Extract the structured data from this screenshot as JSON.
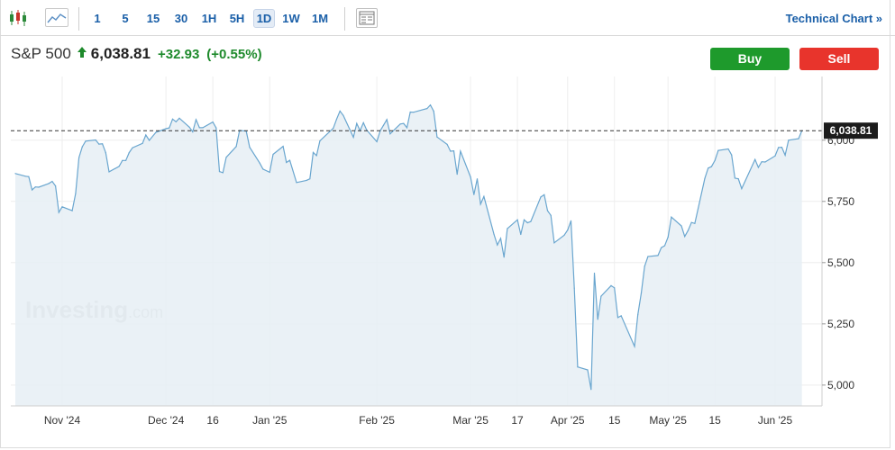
{
  "toolbar": {
    "timeframes": [
      {
        "label": "1",
        "active": false
      },
      {
        "label": "5",
        "active": false
      },
      {
        "label": "15",
        "active": false
      },
      {
        "label": "30",
        "active": false
      },
      {
        "label": "1H",
        "active": false
      },
      {
        "label": "5H",
        "active": false
      },
      {
        "label": "1D",
        "active": true
      },
      {
        "label": "1W",
        "active": false
      },
      {
        "label": "1M",
        "active": false
      }
    ],
    "icons": [
      "candlestick-chart-icon",
      "area-chart-icon",
      "table-view-icon"
    ],
    "technical_chart_label": "Technical Chart »"
  },
  "instrument": {
    "name": "S&P 500",
    "price": "6,038.81",
    "change": "+32.93",
    "change_pct": "(+0.55%)",
    "direction": "up"
  },
  "actions": {
    "buy_label": "Buy",
    "sell_label": "Sell"
  },
  "watermark": {
    "brand": "Investing",
    "suffix": ".com"
  },
  "colors": {
    "line": "#6aa6cf",
    "fill": "#e6eef5",
    "up": "#1e8a2c",
    "buy": "#1e9a2c",
    "sell": "#e8342c",
    "link": "#1a5fa8"
  },
  "chart_data": {
    "type": "area",
    "y_ticks": [
      "5,000",
      "5,250",
      "5,500",
      "5,750",
      "6,000"
    ],
    "y_tick_values": [
      5000,
      5250,
      5500,
      5750,
      6000
    ],
    "ylim": [
      4915,
      6260
    ],
    "x_ticks": [
      {
        "label": "Nov '24",
        "date": "2024-11-01"
      },
      {
        "label": "Dec '24",
        "date": "2024-12-02"
      },
      {
        "label": "16",
        "date": "2024-12-16"
      },
      {
        "label": "Jan '25",
        "date": "2025-01-02"
      },
      {
        "label": "Feb '25",
        "date": "2025-02-03"
      },
      {
        "label": "Mar '25",
        "date": "2025-03-03"
      },
      {
        "label": "17",
        "date": "2025-03-17"
      },
      {
        "label": "Apr '25",
        "date": "2025-04-01"
      },
      {
        "label": "15",
        "date": "2025-04-15"
      },
      {
        "label": "May '25",
        "date": "2025-05-01"
      },
      {
        "label": "15",
        "date": "2025-05-15"
      },
      {
        "label": "Jun '25",
        "date": "2025-06-02"
      }
    ],
    "current_value_label": "6,038.81",
    "current_value": 6038.81,
    "grid": true,
    "series": [
      {
        "points": [
          [
            "2024-10-18",
            5864
          ],
          [
            "2024-10-21",
            5853
          ],
          [
            "2024-10-22",
            5851
          ],
          [
            "2024-10-23",
            5797
          ],
          [
            "2024-10-24",
            5809
          ],
          [
            "2024-10-25",
            5808
          ],
          [
            "2024-10-28",
            5823
          ],
          [
            "2024-10-29",
            5832
          ],
          [
            "2024-10-30",
            5813
          ],
          [
            "2024-10-31",
            5705
          ],
          [
            "2024-11-01",
            5728
          ],
          [
            "2024-11-04",
            5712
          ],
          [
            "2024-11-05",
            5782
          ],
          [
            "2024-11-06",
            5929
          ],
          [
            "2024-11-07",
            5973
          ],
          [
            "2024-11-08",
            5996
          ],
          [
            "2024-11-11",
            6001
          ],
          [
            "2024-11-12",
            5984
          ],
          [
            "2024-11-13",
            5985
          ],
          [
            "2024-11-14",
            5949
          ],
          [
            "2024-11-15",
            5871
          ],
          [
            "2024-11-18",
            5893
          ],
          [
            "2024-11-19",
            5917
          ],
          [
            "2024-11-20",
            5917
          ],
          [
            "2024-11-21",
            5949
          ],
          [
            "2024-11-22",
            5969
          ],
          [
            "2024-11-25",
            5987
          ],
          [
            "2024-11-26",
            6021
          ],
          [
            "2024-11-27",
            5999
          ],
          [
            "2024-11-29",
            6032
          ],
          [
            "2024-12-02",
            6047
          ],
          [
            "2024-12-03",
            6050
          ],
          [
            "2024-12-04",
            6086
          ],
          [
            "2024-12-05",
            6075
          ],
          [
            "2024-12-06",
            6090
          ],
          [
            "2024-12-09",
            6053
          ],
          [
            "2024-12-10",
            6034
          ],
          [
            "2024-12-11",
            6084
          ],
          [
            "2024-12-12",
            6051
          ],
          [
            "2024-12-13",
            6051
          ],
          [
            "2024-12-16",
            6074
          ],
          [
            "2024-12-17",
            6050
          ],
          [
            "2024-12-18",
            5872
          ],
          [
            "2024-12-19",
            5867
          ],
          [
            "2024-12-20",
            5930
          ],
          [
            "2024-12-23",
            5974
          ],
          [
            "2024-12-24",
            6040
          ],
          [
            "2024-12-26",
            6037
          ],
          [
            "2024-12-27",
            5971
          ],
          [
            "2024-12-30",
            5907
          ],
          [
            "2024-12-31",
            5882
          ],
          [
            "2025-01-02",
            5869
          ],
          [
            "2025-01-03",
            5942
          ],
          [
            "2025-01-06",
            5975
          ],
          [
            "2025-01-07",
            5909
          ],
          [
            "2025-01-08",
            5918
          ],
          [
            "2025-01-10",
            5827
          ],
          [
            "2025-01-13",
            5836
          ],
          [
            "2025-01-14",
            5842
          ],
          [
            "2025-01-15",
            5950
          ],
          [
            "2025-01-16",
            5937
          ],
          [
            "2025-01-17",
            5997
          ],
          [
            "2025-01-21",
            6049
          ],
          [
            "2025-01-22",
            6086
          ],
          [
            "2025-01-23",
            6119
          ],
          [
            "2025-01-24",
            6101
          ],
          [
            "2025-01-27",
            6012
          ],
          [
            "2025-01-28",
            6068
          ],
          [
            "2025-01-29",
            6039
          ],
          [
            "2025-01-30",
            6071
          ],
          [
            "2025-01-31",
            6041
          ],
          [
            "2025-02-03",
            5994
          ],
          [
            "2025-02-04",
            6038
          ],
          [
            "2025-02-05",
            6061
          ],
          [
            "2025-02-06",
            6084
          ],
          [
            "2025-02-07",
            6026
          ],
          [
            "2025-02-10",
            6066
          ],
          [
            "2025-02-11",
            6068
          ],
          [
            "2025-02-12",
            6051
          ],
          [
            "2025-02-13",
            6115
          ],
          [
            "2025-02-14",
            6114
          ],
          [
            "2025-02-18",
            6129
          ],
          [
            "2025-02-19",
            6144
          ],
          [
            "2025-02-20",
            6118
          ],
          [
            "2025-02-21",
            6013
          ],
          [
            "2025-02-24",
            5983
          ],
          [
            "2025-02-25",
            5955
          ],
          [
            "2025-02-26",
            5956
          ],
          [
            "2025-02-27",
            5861
          ],
          [
            "2025-02-28",
            5955
          ],
          [
            "2025-03-03",
            5849
          ],
          [
            "2025-03-04",
            5778
          ],
          [
            "2025-03-05",
            5842
          ],
          [
            "2025-03-06",
            5739
          ],
          [
            "2025-03-07",
            5770
          ],
          [
            "2025-03-10",
            5615
          ],
          [
            "2025-03-11",
            5572
          ],
          [
            "2025-03-12",
            5599
          ],
          [
            "2025-03-13",
            5522
          ],
          [
            "2025-03-14",
            5639
          ],
          [
            "2025-03-17",
            5675
          ],
          [
            "2025-03-18",
            5615
          ],
          [
            "2025-03-19",
            5675
          ],
          [
            "2025-03-20",
            5663
          ],
          [
            "2025-03-21",
            5668
          ],
          [
            "2025-03-24",
            5768
          ],
          [
            "2025-03-25",
            5777
          ],
          [
            "2025-03-26",
            5712
          ],
          [
            "2025-03-27",
            5693
          ],
          [
            "2025-03-28",
            5581
          ],
          [
            "2025-03-31",
            5612
          ],
          [
            "2025-04-01",
            5633
          ],
          [
            "2025-04-02",
            5671
          ],
          [
            "2025-04-03",
            5396
          ],
          [
            "2025-04-04",
            5074
          ],
          [
            "2025-04-07",
            5062
          ],
          [
            "2025-04-08",
            4982
          ],
          [
            "2025-04-09",
            5457
          ],
          [
            "2025-04-10",
            5268
          ],
          [
            "2025-04-11",
            5363
          ],
          [
            "2025-04-14",
            5406
          ],
          [
            "2025-04-15",
            5397
          ],
          [
            "2025-04-16",
            5276
          ],
          [
            "2025-04-17",
            5283
          ],
          [
            "2025-04-21",
            5158
          ],
          [
            "2025-04-22",
            5288
          ],
          [
            "2025-04-23",
            5376
          ],
          [
            "2025-04-24",
            5485
          ],
          [
            "2025-04-25",
            5525
          ],
          [
            "2025-04-28",
            5529
          ],
          [
            "2025-04-29",
            5561
          ],
          [
            "2025-04-30",
            5569
          ],
          [
            "2025-05-01",
            5604
          ],
          [
            "2025-05-02",
            5686
          ],
          [
            "2025-05-05",
            5650
          ],
          [
            "2025-05-06",
            5607
          ],
          [
            "2025-05-07",
            5631
          ],
          [
            "2025-05-08",
            5664
          ],
          [
            "2025-05-09",
            5660
          ],
          [
            "2025-05-12",
            5844
          ],
          [
            "2025-05-13",
            5886
          ],
          [
            "2025-05-14",
            5892
          ],
          [
            "2025-05-15",
            5917
          ],
          [
            "2025-05-16",
            5958
          ],
          [
            "2025-05-19",
            5964
          ],
          [
            "2025-05-20",
            5940
          ],
          [
            "2025-05-21",
            5845
          ],
          [
            "2025-05-22",
            5842
          ],
          [
            "2025-05-23",
            5802
          ],
          [
            "2025-05-27",
            5921
          ],
          [
            "2025-05-28",
            5889
          ],
          [
            "2025-05-29",
            5912
          ],
          [
            "2025-05-30",
            5911
          ],
          [
            "2025-06-02",
            5936
          ],
          [
            "2025-06-03",
            5970
          ],
          [
            "2025-06-04",
            5971
          ],
          [
            "2025-06-05",
            5939
          ],
          [
            "2025-06-06",
            6000
          ],
          [
            "2025-06-09",
            6006
          ],
          [
            "2025-06-10",
            6039
          ]
        ]
      }
    ]
  }
}
